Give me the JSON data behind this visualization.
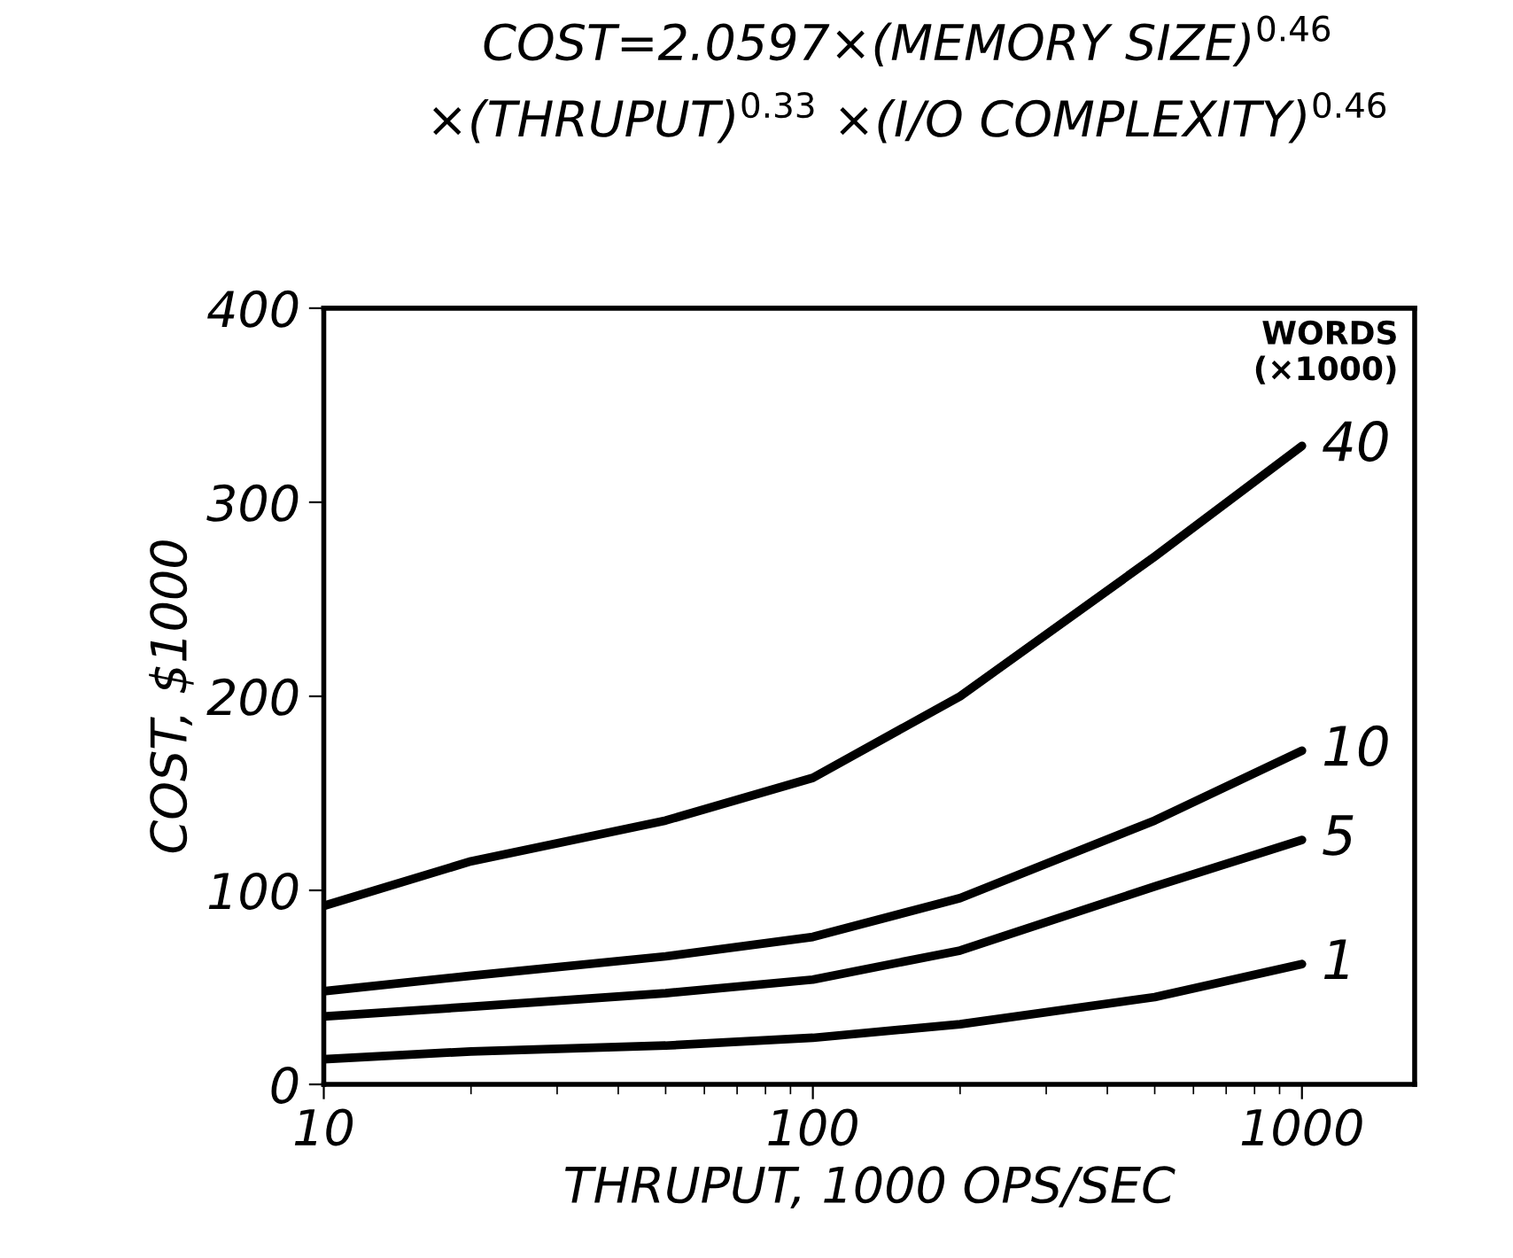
{
  "chart_data": {
    "type": "line",
    "title": "COST=2.0597×(MEMORY SIZE)$^{0.46}$\n×(THRUPUT)$^{0.33}$ ×(I/O COMPLEXITY)$^{0.46}$",
    "xlabel": "THRUPUT, 1000 OPS/SEC",
    "ylabel": "COST, $1000",
    "legend_title": "WORDS\n(×1000)",
    "x": [
      10,
      20,
      50,
      100,
      200,
      500,
      1000
    ],
    "series": [
      {
        "name": "40",
        "color": "#000000",
        "values": [
          92,
          115,
          136,
          158,
          200,
          272,
          329
        ]
      },
      {
        "name": "10",
        "color": "#000000",
        "values": [
          48,
          56,
          66,
          76,
          96,
          136,
          172
        ]
      },
      {
        "name": "5",
        "color": "#000000",
        "values": [
          35,
          40,
          47,
          54,
          69,
          102,
          126
        ]
      },
      {
        "name": "1",
        "color": "#000000",
        "values": [
          13,
          17,
          20,
          24,
          31,
          45,
          62
        ]
      }
    ],
    "log": "x",
    "xlim": [
      10,
      1700
    ],
    "xticks": [
      10,
      100,
      1000
    ],
    "ylim": [
      0,
      400
    ],
    "yticks": [
      0,
      100,
      200,
      300,
      400
    ],
    "grid": false,
    "legend": false,
    "marker": "none",
    "line_style": "solid"
  }
}
